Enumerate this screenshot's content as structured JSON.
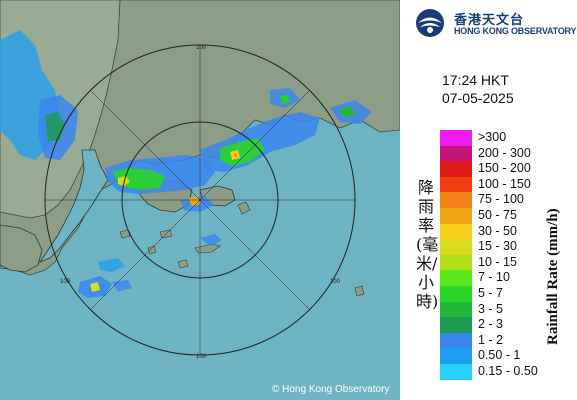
{
  "map": {
    "copyright": "© Hong Kong Observatory",
    "range_rings": [
      {
        "label": "100"
      },
      {
        "label": "100"
      },
      {
        "label": "100"
      },
      {
        "label": "100"
      }
    ],
    "colors": {
      "sea": "#6fb4c4",
      "land": "#8fa08a",
      "ring": "#222222"
    }
  },
  "panel": {
    "logo": {
      "icon": "hko-logo-icon",
      "name_zh": "香港天文台",
      "name_en": "HONG KONG OBSERVATORY"
    },
    "time": "17:24 HKT",
    "date": "07-05-2025",
    "title_zh": "降雨率(毫米/小時)",
    "title_en": "Rainfall Rate (mm/h)",
    "legend": [
      {
        "label": ">300",
        "color": "#f21cf2"
      },
      {
        "label": "200 - 300",
        "color": "#c2157a"
      },
      {
        "label": "150 - 200",
        "color": "#e01a1a"
      },
      {
        "label": "100 - 150",
        "color": "#f04010"
      },
      {
        "label": "75 - 100",
        "color": "#f28018"
      },
      {
        "label": "50 - 75",
        "color": "#f0a418"
      },
      {
        "label": "30 - 50",
        "color": "#f7cc1a"
      },
      {
        "label": "15 - 30",
        "color": "#dada1e"
      },
      {
        "label": "10 - 15",
        "color": "#b4e21a"
      },
      {
        "label": "7 - 10",
        "color": "#5ce818"
      },
      {
        "label": "5 - 7",
        "color": "#28d628"
      },
      {
        "label": "3 - 5",
        "color": "#20b83a"
      },
      {
        "label": "2 - 3",
        "color": "#1c9a52"
      },
      {
        "label": "1 - 2",
        "color": "#3a86f0"
      },
      {
        "label": "0.50 - 1",
        "color": "#1ea0f2"
      },
      {
        "label": "0.15 - 0.50",
        "color": "#26d0f7"
      }
    ]
  }
}
